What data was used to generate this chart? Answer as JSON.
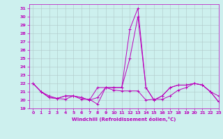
{
  "xlabel": "Windchill (Refroidissement éolien,°C)",
  "xlim": [
    -0.5,
    23
  ],
  "ylim": [
    19,
    31.5
  ],
  "yticks": [
    19,
    20,
    21,
    22,
    23,
    24,
    25,
    26,
    27,
    28,
    29,
    30,
    31
  ],
  "xticks": [
    0,
    1,
    2,
    3,
    4,
    5,
    6,
    7,
    8,
    9,
    10,
    11,
    12,
    13,
    14,
    15,
    16,
    17,
    18,
    19,
    20,
    21,
    22,
    23
  ],
  "bg_color": "#cdf0ee",
  "grid_color": "#b0c8c8",
  "line_color": "#bb00bb",
  "series": [
    [
      22.0,
      21.0,
      20.5,
      20.2,
      20.1,
      20.5,
      20.1,
      20.1,
      19.5,
      21.5,
      21.2,
      21.1,
      21.1,
      21.1,
      20.0,
      20.1,
      20.1,
      20.5,
      21.2,
      21.5,
      22.0,
      21.8,
      21.0,
      20.5
    ],
    [
      22.0,
      21.0,
      20.3,
      20.2,
      20.5,
      20.5,
      20.3,
      20.0,
      20.3,
      21.5,
      21.5,
      21.5,
      25.0,
      30.0,
      21.5,
      20.0,
      20.5,
      21.5,
      21.8,
      21.8,
      22.0,
      21.8,
      21.0,
      19.8
    ],
    [
      22.0,
      21.0,
      20.3,
      20.2,
      20.5,
      20.5,
      20.3,
      20.0,
      21.5,
      21.5,
      21.5,
      21.5,
      28.5,
      31.0,
      21.5,
      20.0,
      20.5,
      21.5,
      21.8,
      21.8,
      22.0,
      21.8,
      21.0,
      19.8
    ]
  ]
}
